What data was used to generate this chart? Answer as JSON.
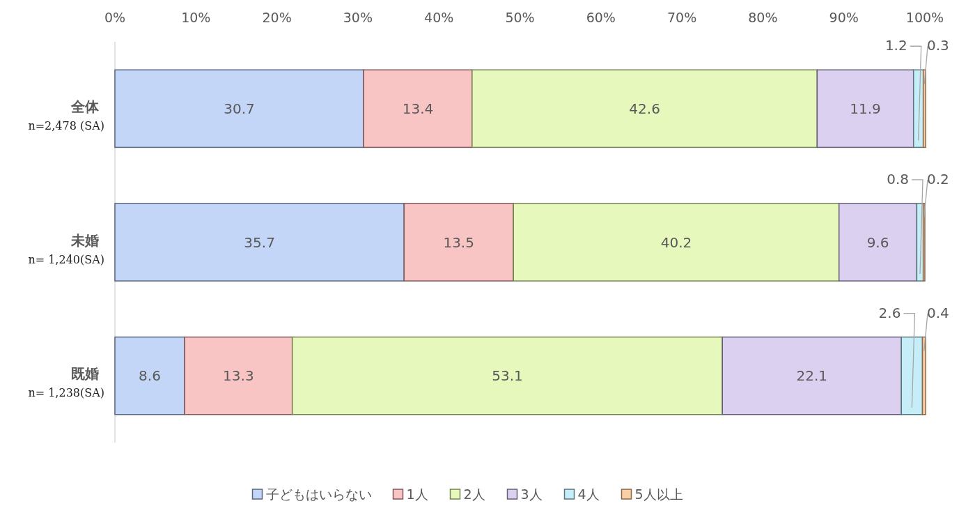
{
  "chart_data": {
    "type": "bar",
    "orientation": "horizontal",
    "stacked": true,
    "categories": [
      "全体\nn=2,478 (SA)",
      "未婚\nn= 1,240(SA)",
      "既婚\nn= 1,238(SA)"
    ],
    "series": [
      {
        "name": "子どもはいらない",
        "color": "#c3d6f7",
        "values": [
          30.7,
          35.7,
          8.6
        ]
      },
      {
        "name": "1人",
        "color": "#f9c4c4",
        "values": [
          13.4,
          13.5,
          13.3
        ]
      },
      {
        "name": "2人",
        "color": "#e6f8bc",
        "values": [
          42.6,
          40.2,
          53.1
        ]
      },
      {
        "name": "3人",
        "color": "#dcd0f0",
        "values": [
          11.9,
          9.6,
          22.1
        ]
      },
      {
        "name": "4人",
        "color": "#c6eef8",
        "values": [
          1.2,
          0.8,
          2.6
        ]
      },
      {
        "name": "5人以上",
        "color": "#fbcfa6",
        "values": [
          0.3,
          0.2,
          0.4
        ]
      }
    ],
    "xlim": [
      0,
      100
    ],
    "xticks": [
      {
        "value": 0,
        "label": "0%"
      },
      {
        "value": 10,
        "label": "10%"
      },
      {
        "value": 20,
        "label": "20%"
      },
      {
        "value": 30,
        "label": "30%"
      },
      {
        "value": 40,
        "label": "40%"
      },
      {
        "value": 50,
        "label": "50%"
      },
      {
        "value": 60,
        "label": "60%"
      },
      {
        "value": 70,
        "label": "70%"
      },
      {
        "value": 80,
        "label": "80%"
      },
      {
        "value": 90,
        "label": "90%"
      },
      {
        "value": 100,
        "label": "100%"
      }
    ],
    "data_labels": true,
    "legend": "bottom",
    "grid": false
  }
}
